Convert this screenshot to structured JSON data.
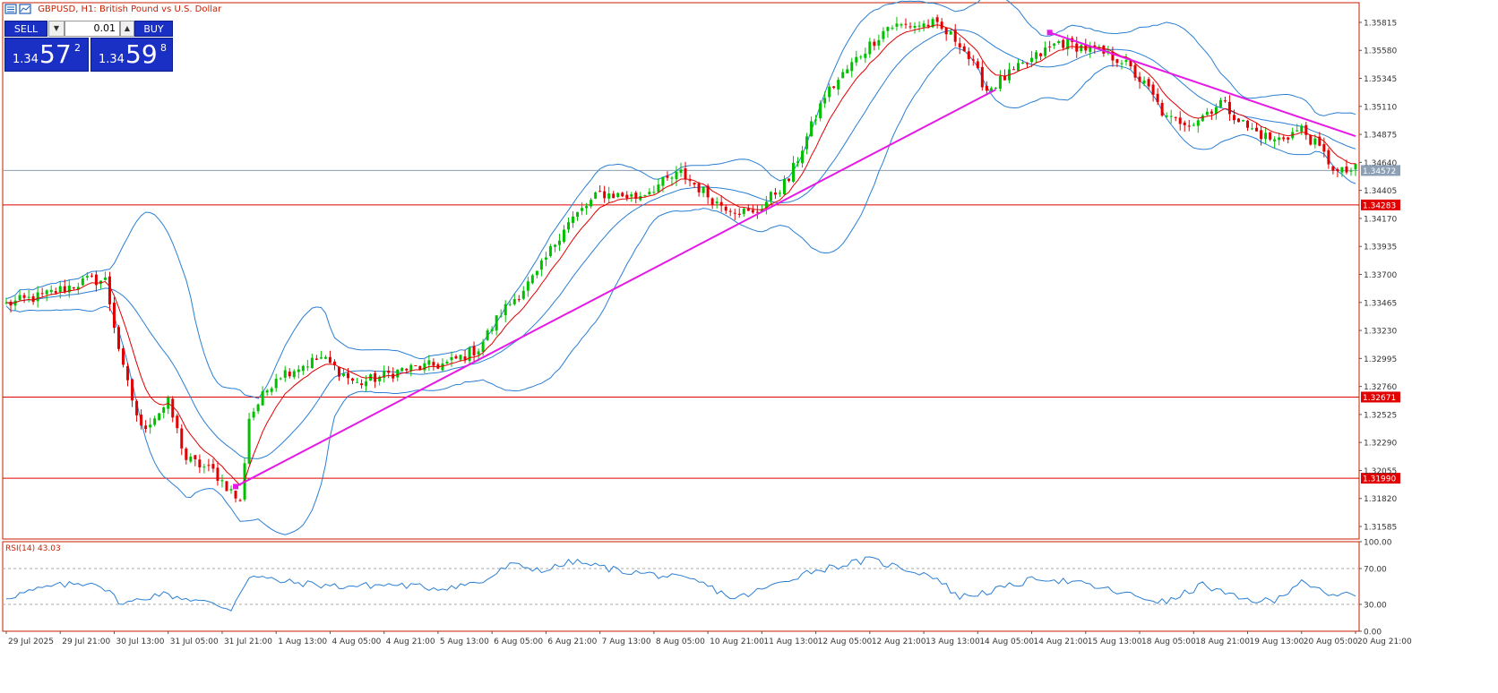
{
  "chart_title": {
    "symbol_tf": "GBPUSD, H1:",
    "description": "British Pound vs U.S. Dollar"
  },
  "trade_panel": {
    "sell_label": "SELL",
    "buy_label": "BUY",
    "lot": "0.01",
    "sell_price": {
      "small": "1.34",
      "big": "57",
      "sup": "2"
    },
    "buy_price": {
      "small": "1.34",
      "big": "59",
      "sup": "8"
    }
  },
  "colors": {
    "bull": "#00c000",
    "bear": "#e00000",
    "bands": "#2a7fd4",
    "ma": "#e00000",
    "trendline": "#e619e6",
    "hline": "#e00000",
    "bid_line": "#8c9fb4",
    "rsi": "#2a7fd4"
  },
  "chart_data": [
    {
      "type": "candlestick",
      "series": [
        {
          "name": "GBPUSD, H1"
        }
      ],
      "price_axis_ticks": [
        "1.35815",
        "1.35580",
        "1.35345",
        "1.35110",
        "1.34875",
        "1.34640",
        "1.34405",
        "1.34170",
        "1.33935",
        "1.33700",
        "1.33465",
        "1.33230",
        "1.32995",
        "1.32760",
        "1.32525",
        "1.32290",
        "1.32055",
        "1.31820",
        "1.31585"
      ],
      "time_axis_ticks": [
        "29 Jul 2025",
        "29 Jul 21:00",
        "30 Jul 13:00",
        "31 Jul 05:00",
        "31 Jul 21:00",
        "1 Aug 13:00",
        "4 Aug 05:00",
        "4 Aug 21:00",
        "5 Aug 13:00",
        "6 Aug 05:00",
        "6 Aug 21:00",
        "7 Aug 13:00",
        "8 Aug 05:00",
        "10 Aug 21:00",
        "11 Aug 13:00",
        "12 Aug 05:00",
        "12 Aug 21:00",
        "13 Aug 13:00",
        "14 Aug 05:00",
        "14 Aug 21:00",
        "15 Aug 13:00",
        "18 Aug 05:00",
        "18 Aug 21:00",
        "19 Aug 13:00",
        "20 Aug 05:00",
        "20 Aug 21:00"
      ],
      "ylim": [
        1.3148,
        1.3598
      ],
      "anchors": [
        {
          "t": 0,
          "p": 1.3345
        },
        {
          "t": 8,
          "p": 1.3352
        },
        {
          "t": 18,
          "p": 1.3365
        },
        {
          "t": 22,
          "p": 1.3365
        },
        {
          "t": 26,
          "p": 1.329
        },
        {
          "t": 30,
          "p": 1.324
        },
        {
          "t": 36,
          "p": 1.3262
        },
        {
          "t": 40,
          "p": 1.3215
        },
        {
          "t": 46,
          "p": 1.3205
        },
        {
          "t": 50,
          "p": 1.3188
        },
        {
          "t": 52,
          "p": 1.3178
        },
        {
          "t": 54,
          "p": 1.325
        },
        {
          "t": 60,
          "p": 1.3285
        },
        {
          "t": 70,
          "p": 1.33
        },
        {
          "t": 78,
          "p": 1.3278
        },
        {
          "t": 88,
          "p": 1.329
        },
        {
          "t": 98,
          "p": 1.3295
        },
        {
          "t": 105,
          "p": 1.3308
        },
        {
          "t": 110,
          "p": 1.3338
        },
        {
          "t": 118,
          "p": 1.337
        },
        {
          "t": 124,
          "p": 1.341
        },
        {
          "t": 132,
          "p": 1.3438
        },
        {
          "t": 140,
          "p": 1.3435
        },
        {
          "t": 150,
          "p": 1.3455
        },
        {
          "t": 158,
          "p": 1.343
        },
        {
          "t": 166,
          "p": 1.342
        },
        {
          "t": 174,
          "p": 1.345
        },
        {
          "t": 182,
          "p": 1.352
        },
        {
          "t": 190,
          "p": 1.3555
        },
        {
          "t": 196,
          "p": 1.3578
        },
        {
          "t": 206,
          "p": 1.358
        },
        {
          "t": 212,
          "p": 1.3565
        },
        {
          "t": 218,
          "p": 1.3525
        },
        {
          "t": 226,
          "p": 1.3545
        },
        {
          "t": 234,
          "p": 1.3565
        },
        {
          "t": 240,
          "p": 1.356
        },
        {
          "t": 248,
          "p": 1.355
        },
        {
          "t": 254,
          "p": 1.3525
        },
        {
          "t": 258,
          "p": 1.35
        },
        {
          "t": 264,
          "p": 1.3498
        },
        {
          "t": 270,
          "p": 1.3515
        },
        {
          "t": 276,
          "p": 1.3493
        },
        {
          "t": 282,
          "p": 1.3482
        },
        {
          "t": 288,
          "p": 1.3492
        },
        {
          "t": 292,
          "p": 1.3475
        },
        {
          "t": 296,
          "p": 1.3455
        },
        {
          "t": 300,
          "p": 1.3458
        }
      ],
      "horizontal_levels": [
        {
          "price": 1.34283,
          "label": "1.34283"
        },
        {
          "price": 1.32671,
          "label": "1.32671"
        },
        {
          "price": 1.3199,
          "label": "1.31990"
        }
      ],
      "bid": {
        "price": 1.34572,
        "label": "1.34572"
      },
      "trendlines": [
        {
          "t1": 51,
          "p1": 1.3192,
          "t2": 220,
          "p2": 1.3525
        },
        {
          "t1": 232,
          "p1": 1.3573,
          "t2": 300,
          "p2": 1.3486
        }
      ]
    },
    {
      "type": "line",
      "title": "RSI(14) 43.03",
      "series": [
        {
          "name": "RSI(14)"
        }
      ],
      "ylim": [
        0,
        100
      ],
      "y_ticks": [
        "100.00",
        "70.00",
        "30.00",
        "0.00"
      ],
      "levels": [
        70,
        30
      ],
      "anchors": [
        {
          "t": 0,
          "v": 38
        },
        {
          "t": 10,
          "v": 50
        },
        {
          "t": 20,
          "v": 55
        },
        {
          "t": 26,
          "v": 30
        },
        {
          "t": 34,
          "v": 42
        },
        {
          "t": 42,
          "v": 35
        },
        {
          "t": 50,
          "v": 25
        },
        {
          "t": 54,
          "v": 62
        },
        {
          "t": 62,
          "v": 55
        },
        {
          "t": 74,
          "v": 50
        },
        {
          "t": 86,
          "v": 52
        },
        {
          "t": 96,
          "v": 48
        },
        {
          "t": 106,
          "v": 55
        },
        {
          "t": 112,
          "v": 74
        },
        {
          "t": 120,
          "v": 68
        },
        {
          "t": 126,
          "v": 78
        },
        {
          "t": 136,
          "v": 68
        },
        {
          "t": 146,
          "v": 62
        },
        {
          "t": 154,
          "v": 55
        },
        {
          "t": 162,
          "v": 36
        },
        {
          "t": 170,
          "v": 50
        },
        {
          "t": 178,
          "v": 66
        },
        {
          "t": 184,
          "v": 72
        },
        {
          "t": 192,
          "v": 80
        },
        {
          "t": 198,
          "v": 72
        },
        {
          "t": 206,
          "v": 62
        },
        {
          "t": 212,
          "v": 38
        },
        {
          "t": 220,
          "v": 46
        },
        {
          "t": 230,
          "v": 60
        },
        {
          "t": 240,
          "v": 52
        },
        {
          "t": 252,
          "v": 38
        },
        {
          "t": 258,
          "v": 32
        },
        {
          "t": 266,
          "v": 52
        },
        {
          "t": 274,
          "v": 36
        },
        {
          "t": 282,
          "v": 33
        },
        {
          "t": 288,
          "v": 58
        },
        {
          "t": 294,
          "v": 38
        },
        {
          "t": 300,
          "v": 43
        }
      ]
    }
  ]
}
